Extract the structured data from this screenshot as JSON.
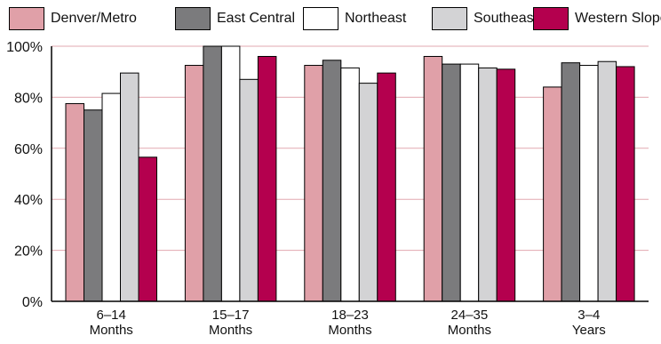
{
  "chart_data": {
    "type": "bar",
    "categories": [
      "6–14\nMonths",
      "15–17\nMonths",
      "18–23\nMonths",
      "24–35\nMonths",
      "3–4\nYears"
    ],
    "series": [
      {
        "name": "Denver/Metro",
        "color": "#e0a0a8",
        "values": [
          77.5,
          92.5,
          92.5,
          96,
          84
        ]
      },
      {
        "name": "East Central",
        "color": "#7b7b7d",
        "values": [
          75,
          100,
          94.5,
          93,
          93.5
        ]
      },
      {
        "name": "Northeast",
        "color": "#ffffff",
        "values": [
          81.5,
          100,
          91.5,
          93,
          92.5
        ]
      },
      {
        "name": "Southeast",
        "color": "#d3d3d5",
        "values": [
          89.5,
          87,
          85.5,
          91.5,
          94
        ]
      },
      {
        "name": "Western Slope",
        "color": "#b4004e",
        "values": [
          56.5,
          96,
          89.5,
          91,
          92
        ]
      }
    ],
    "yticks": [
      "0%",
      "20%",
      "40%",
      "60%",
      "80%",
      "100%"
    ],
    "ylim": [
      0,
      100
    ],
    "grid": true,
    "gridline_color": "#e2a8b0",
    "legend_position": "top"
  }
}
